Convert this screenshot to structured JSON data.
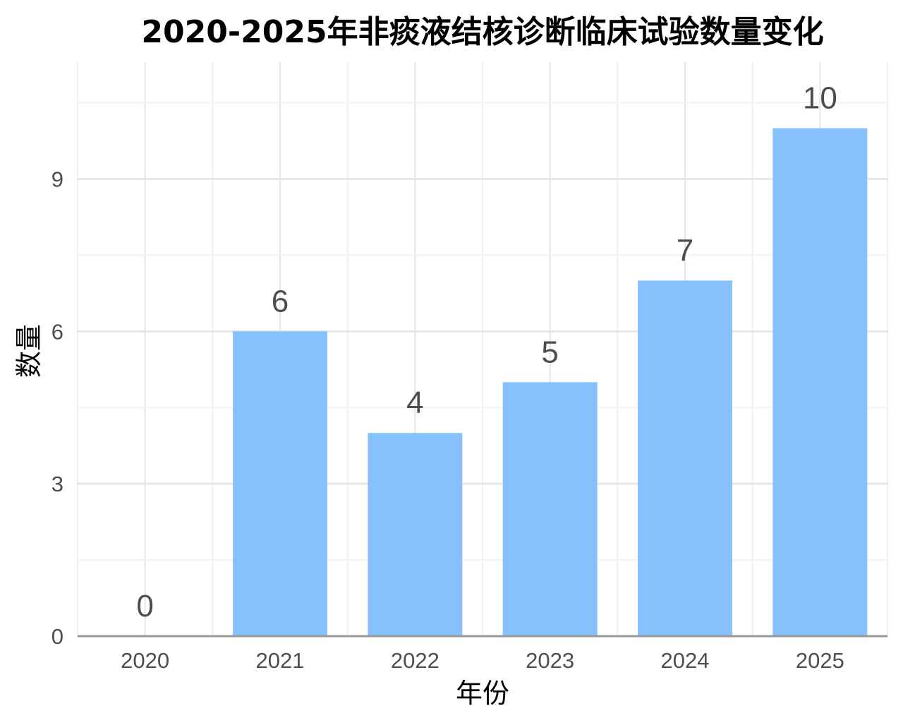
{
  "chart_data": {
    "type": "bar",
    "title": "2020-2025年非痰液结核诊断临床试验数量变化",
    "xlabel": "年份",
    "ylabel": "数量",
    "categories": [
      "2020",
      "2021",
      "2022",
      "2023",
      "2024",
      "2025"
    ],
    "values": [
      0,
      6,
      4,
      5,
      7,
      10
    ],
    "ylim": [
      0,
      11.3
    ],
    "yticks": [
      0,
      3,
      6,
      9
    ],
    "grid": true,
    "legend": "none",
    "bar_color": "#87c1fd",
    "grid_color": "#e6e6e6",
    "axis_color": "#999999",
    "label_color": "#4d4d4d"
  }
}
